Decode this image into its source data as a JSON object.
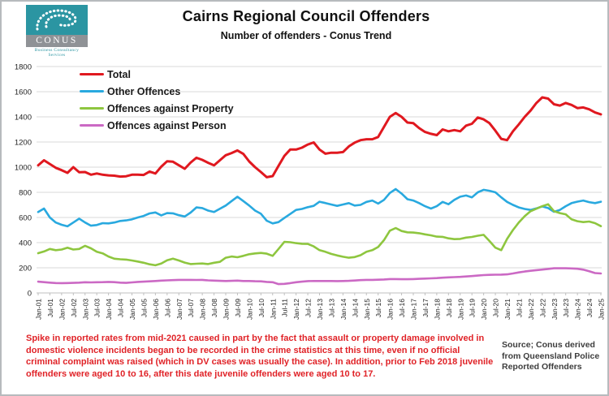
{
  "logo": {
    "brand": "CONUS",
    "tagline": "Business Consultancy Services",
    "teal": "#2b95a2",
    "gray": "#8f9296"
  },
  "header": {
    "title": "Cairns Regional Council Offenders",
    "subtitle": "Number of offenders - Conus Trend"
  },
  "chart_data": {
    "type": "line",
    "title": "Cairns Regional Council Offenders",
    "subtitle": "Number of offenders - Conus Trend",
    "xlabel": "",
    "ylabel": "",
    "ylim": [
      0,
      1800
    ],
    "grid": "horizontal",
    "legend_position": "top-left",
    "y_ticks": [
      0,
      200,
      400,
      600,
      800,
      1000,
      1200,
      1400,
      1600,
      1800
    ],
    "x_tick_labels": [
      "Jan-01",
      "Jul-01",
      "Jan-02",
      "Jul-02",
      "Jan-03",
      "Jul-03",
      "Jan-04",
      "Jul-04",
      "Jan-05",
      "Jul-05",
      "Jan-06",
      "Jul-06",
      "Jan-07",
      "Jul-07",
      "Jan-08",
      "Jul-08",
      "Jan-09",
      "Jul-09",
      "Jan-10",
      "Jul-10",
      "Jan-11",
      "Jul-11",
      "Jan-12",
      "Jul-12",
      "Jan-13",
      "Jul-13",
      "Jan-14",
      "Jul-14",
      "Jan-15",
      "Jul-15",
      "Jan-16",
      "Jul-16",
      "Jan-17",
      "Jul-17",
      "Jan-18",
      "Jul-18",
      "Jan-19",
      "Jul-19",
      "Jan-20",
      "Jul-20",
      "Jan-21",
      "Jul-21",
      "Jan-22",
      "Jul-22",
      "Jan-23",
      "Jul-23",
      "Jan-24",
      "Jul-24",
      "Jan-25"
    ],
    "months_per_point": 3,
    "x_start_label": "Jan-01",
    "x_end_label": "Jan-25",
    "series": [
      {
        "name": "Total",
        "color": "#e0181f",
        "values": [
          1015,
          1055,
          1025,
          995,
          976,
          955,
          1000,
          960,
          961,
          940,
          950,
          940,
          935,
          932,
          925,
          928,
          940,
          940,
          938,
          965,
          950,
          1004,
          1047,
          1043,
          1015,
          987,
          1036,
          1075,
          1058,
          1035,
          1015,
          1055,
          1095,
          1112,
          1133,
          1105,
          1045,
          1000,
          961,
          920,
          929,
          1010,
          1090,
          1140,
          1140,
          1155,
          1180,
          1197,
          1140,
          1107,
          1115,
          1115,
          1120,
          1165,
          1195,
          1215,
          1222,
          1222,
          1240,
          1320,
          1400,
          1430,
          1400,
          1355,
          1350,
          1310,
          1280,
          1265,
          1255,
          1300,
          1285,
          1295,
          1285,
          1330,
          1345,
          1395,
          1380,
          1350,
          1290,
          1225,
          1215,
          1285,
          1340,
          1400,
          1450,
          1510,
          1555,
          1545,
          1500,
          1490,
          1510,
          1495,
          1470,
          1475,
          1460,
          1435,
          1420
        ]
      },
      {
        "name": "Other Offences",
        "color": "#29a9df",
        "values": [
          643,
          671,
          600,
          560,
          542,
          530,
          560,
          591,
          560,
          535,
          540,
          555,
          553,
          560,
          572,
          577,
          585,
          600,
          612,
          632,
          640,
          617,
          635,
          633,
          618,
          608,
          639,
          680,
          675,
          655,
          643,
          670,
          695,
          730,
          765,
          730,
          695,
          655,
          630,
          574,
          553,
          563,
          596,
          628,
          660,
          668,
          682,
          692,
          725,
          715,
          703,
          692,
          703,
          714,
          695,
          700,
          724,
          735,
          710,
          740,
          795,
          826,
          790,
          745,
          735,
          714,
          690,
          671,
          690,
          724,
          705,
          740,
          765,
          775,
          760,
          800,
          820,
          812,
          800,
          760,
          724,
          700,
          680,
          668,
          660,
          672,
          688,
          675,
          645,
          660,
          690,
          714,
          726,
          735,
          722,
          714,
          725
        ]
      },
      {
        "name": "Offences against Property",
        "color": "#8ec63f",
        "values": [
          316,
          330,
          350,
          340,
          345,
          360,
          345,
          350,
          375,
          355,
          327,
          315,
          290,
          272,
          268,
          265,
          258,
          250,
          240,
          228,
          220,
          234,
          260,
          272,
          258,
          241,
          230,
          232,
          234,
          230,
          240,
          247,
          280,
          290,
          284,
          295,
          308,
          314,
          318,
          312,
          295,
          350,
          406,
          403,
          396,
          391,
          390,
          370,
          340,
          327,
          310,
          298,
          288,
          280,
          285,
          300,
          327,
          340,
          365,
          420,
          495,
          516,
          492,
          482,
          480,
          475,
          466,
          458,
          448,
          446,
          434,
          428,
          430,
          440,
          445,
          455,
          462,
          413,
          360,
          340,
          430,
          500,
          560,
          610,
          650,
          670,
          690,
          705,
          650,
          635,
          625,
          585,
          570,
          563,
          568,
          555,
          531
        ]
      },
      {
        "name": "Offences against Person",
        "color": "#cb69c4",
        "values": [
          90,
          86,
          82,
          79,
          78,
          79,
          80,
          82,
          85,
          84,
          85,
          86,
          88,
          86,
          82,
          80,
          84,
          88,
          90,
          92,
          95,
          98,
          100,
          102,
          104,
          104,
          104,
          103,
          104,
          100,
          98,
          96,
          95,
          96,
          98,
          95,
          95,
          93,
          92,
          88,
          85,
          70,
          72,
          78,
          85,
          90,
          94,
          95,
          95,
          95,
          95,
          94,
          95,
          96,
          99,
          102,
          104,
          104,
          105,
          107,
          110,
          110,
          109,
          109,
          110,
          112,
          114,
          116,
          118,
          121,
          124,
          126,
          128,
          131,
          134,
          138,
          142,
          144,
          145,
          146,
          148,
          155,
          163,
          170,
          176,
          181,
          186,
          191,
          196,
          197,
          196,
          195,
          192,
          185,
          172,
          158,
          155
        ]
      }
    ]
  },
  "footnote": {
    "text": "Spike in reported rates from mid-2021 caused in part by the fact that assault or property damage involved in domestic violence incidents began to be recorded in the crime statistics at this time, even if no official criminal complaint was raised (which in DV cases was usually the case). In addition, prior to Feb 2018 juvenile offenders were aged 10 to 16, after this date juvenile offenders were aged 10 to 17.",
    "color": "#e02227"
  },
  "source": {
    "text": "Source; Conus derived from Queensland Police Reported Offenders"
  },
  "colors": {
    "gridline": "#d9d9d9",
    "axis": "#bfbfbf",
    "tick_text": "#1f1f1f"
  }
}
